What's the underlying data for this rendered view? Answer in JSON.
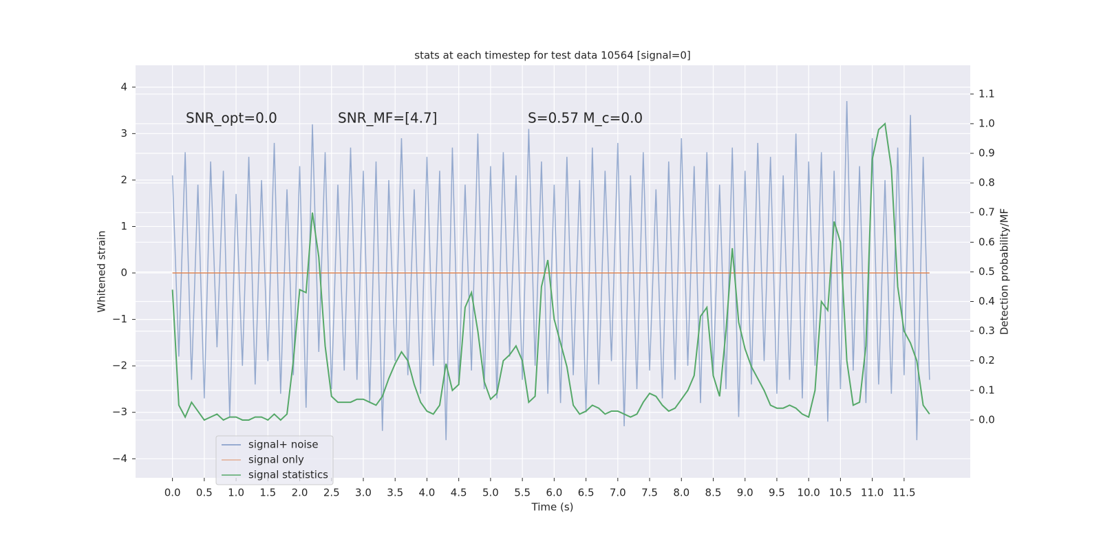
{
  "chart_data": {
    "type": "line",
    "title": "stats at each timestep for test data 10564 [signal=0]",
    "xlabel": "Time (s)",
    "ylabel": "Whitened strain",
    "y2label": "Detection probability/MF",
    "annotations": [
      "SNR_opt=0.0",
      "SNR_MF=[4.7]",
      "S=0.57   M_c=0.0"
    ],
    "grid": true,
    "legend": "lower left",
    "x": [
      0,
      0.1,
      0.2,
      0.3,
      0.4,
      0.5,
      0.6,
      0.7,
      0.8,
      0.9,
      1,
      1.1,
      1.2,
      1.3,
      1.4,
      1.5,
      1.6,
      1.7,
      1.8,
      1.9,
      2,
      2.1,
      2.2,
      2.3,
      2.4,
      2.5,
      2.6,
      2.7,
      2.8,
      2.9,
      3,
      3.1,
      3.2,
      3.3,
      3.4,
      3.5,
      3.6,
      3.7,
      3.8,
      3.9,
      4,
      4.1,
      4.2,
      4.3,
      4.4,
      4.5,
      4.6,
      4.7,
      4.8,
      4.9,
      5,
      5.1,
      5.2,
      5.3,
      5.4,
      5.5,
      5.6,
      5.7,
      5.8,
      5.9,
      6,
      6.1,
      6.2,
      6.3,
      6.4,
      6.5,
      6.6,
      6.7,
      6.8,
      6.9,
      7,
      7.1,
      7.2,
      7.3,
      7.4,
      7.5,
      7.6,
      7.7,
      7.8,
      7.9,
      8,
      8.1,
      8.2,
      8.3,
      8.4,
      8.5,
      8.6,
      8.7,
      8.8,
      8.9,
      9,
      9.1,
      9.2,
      9.3,
      9.4,
      9.5,
      9.6,
      9.7,
      9.8,
      9.9,
      10,
      10.1,
      10.2,
      10.3,
      10.4,
      10.5,
      10.6,
      10.7,
      10.8,
      10.9,
      11,
      11.1,
      11.2,
      11.3,
      11.4,
      11.5,
      11.6,
      11.7,
      11.8,
      11.9
    ],
    "series": [
      {
        "name": "signal+ noise",
        "color": "#4c72b0",
        "axis": "y",
        "values": [
          2.1,
          -1.8,
          2.6,
          -2.3,
          1.9,
          -2.7,
          2.4,
          -1.6,
          2.2,
          -3.1,
          1.7,
          -2.0,
          2.5,
          -2.4,
          2.0,
          -1.9,
          2.8,
          -2.6,
          1.8,
          -2.2,
          2.3,
          -2.9,
          3.2,
          -1.7,
          2.6,
          -2.5,
          1.9,
          -2.1,
          2.7,
          -2.3,
          2.2,
          -2.8,
          2.4,
          -3.4,
          2.0,
          -1.9,
          2.9,
          -2.2,
          1.8,
          -2.6,
          2.5,
          -2.0,
          2.2,
          -3.6,
          2.7,
          -2.4,
          1.9,
          -2.1,
          3.0,
          -2.5,
          2.3,
          -2.7,
          2.6,
          -1.8,
          2.1,
          -2.3,
          3.1,
          -2.0,
          2.4,
          -2.6,
          1.9,
          -2.8,
          2.5,
          -2.2,
          2.0,
          -3.0,
          2.7,
          -2.4,
          2.2,
          -1.9,
          2.8,
          -3.3,
          2.1,
          -2.5,
          2.6,
          -2.1,
          1.8,
          -2.7,
          2.4,
          -2.3,
          2.9,
          -2.0,
          2.3,
          -2.8,
          2.6,
          -2.2,
          1.9,
          -2.5,
          2.7,
          -3.1,
          2.2,
          -2.4,
          2.8,
          -1.9,
          2.5,
          -2.6,
          2.1,
          -2.3,
          3.0,
          -2.7,
          2.4,
          -2.0,
          2.6,
          -3.2,
          2.2,
          -2.5,
          3.7,
          -2.1,
          2.3,
          -2.8,
          2.9,
          -2.4,
          2.0,
          -2.6,
          2.7,
          -2.2,
          3.4,
          -3.6,
          2.5,
          -2.3
        ]
      },
      {
        "name": "signal only",
        "color": "#dd8452",
        "axis": "y",
        "values": [
          0,
          0,
          0,
          0,
          0,
          0,
          0,
          0,
          0,
          0,
          0,
          0,
          0,
          0,
          0,
          0,
          0,
          0,
          0,
          0,
          0,
          0,
          0,
          0,
          0,
          0,
          0,
          0,
          0,
          0,
          0,
          0,
          0,
          0,
          0,
          0,
          0,
          0,
          0,
          0,
          0,
          0,
          0,
          0,
          0,
          0,
          0,
          0,
          0,
          0,
          0,
          0,
          0,
          0,
          0,
          0,
          0,
          0,
          0,
          0,
          0,
          0,
          0,
          0,
          0,
          0,
          0,
          0,
          0,
          0,
          0,
          0,
          0,
          0,
          0,
          0,
          0,
          0,
          0,
          0,
          0,
          0,
          0,
          0,
          0,
          0,
          0,
          0,
          0,
          0,
          0,
          0,
          0,
          0,
          0,
          0,
          0,
          0,
          0,
          0,
          0,
          0,
          0,
          0,
          0,
          0,
          0,
          0,
          0,
          0,
          0,
          0,
          0,
          0,
          0,
          0,
          0,
          0,
          0,
          0
        ]
      },
      {
        "name": "signal statistics",
        "color": "#55a868",
        "axis": "y2",
        "values": [
          0.44,
          0.05,
          0.01,
          0.06,
          0.03,
          0.0,
          0.01,
          0.02,
          0.0,
          0.01,
          0.01,
          0.0,
          0.0,
          0.01,
          0.01,
          0.0,
          0.02,
          0.0,
          0.02,
          0.2,
          0.44,
          0.43,
          0.7,
          0.55,
          0.25,
          0.08,
          0.06,
          0.06,
          0.06,
          0.07,
          0.07,
          0.06,
          0.05,
          0.08,
          0.14,
          0.19,
          0.23,
          0.2,
          0.12,
          0.06,
          0.03,
          0.02,
          0.05,
          0.19,
          0.1,
          0.12,
          0.38,
          0.43,
          0.3,
          0.13,
          0.07,
          0.09,
          0.2,
          0.22,
          0.25,
          0.2,
          0.06,
          0.08,
          0.45,
          0.54,
          0.34,
          0.26,
          0.18,
          0.05,
          0.02,
          0.03,
          0.05,
          0.04,
          0.02,
          0.03,
          0.03,
          0.02,
          0.01,
          0.02,
          0.06,
          0.09,
          0.08,
          0.05,
          0.03,
          0.04,
          0.07,
          0.1,
          0.15,
          0.35,
          0.38,
          0.15,
          0.08,
          0.3,
          0.58,
          0.33,
          0.24,
          0.18,
          0.14,
          0.1,
          0.05,
          0.04,
          0.04,
          0.05,
          0.04,
          0.02,
          0.01,
          0.1,
          0.4,
          0.37,
          0.67,
          0.6,
          0.2,
          0.05,
          0.06,
          0.25,
          0.88,
          0.98,
          1.0,
          0.85,
          0.45,
          0.3,
          0.26,
          0.2,
          0.05,
          0.02
        ]
      }
    ],
    "xlim": [
      -0.58,
      12.54
    ],
    "xticks": [
      {
        "value": 0,
        "label": "0.0"
      },
      {
        "value": 0.5,
        "label": "0.5"
      },
      {
        "value": 1,
        "label": "1.0"
      },
      {
        "value": 1.5,
        "label": "1.5"
      },
      {
        "value": 2,
        "label": "2.0"
      },
      {
        "value": 2.5,
        "label": "2.5"
      },
      {
        "value": 3,
        "label": "3.0"
      },
      {
        "value": 3.5,
        "label": "3.5"
      },
      {
        "value": 4,
        "label": "4.0"
      },
      {
        "value": 4.5,
        "label": "4.5"
      },
      {
        "value": 5,
        "label": "5.0"
      },
      {
        "value": 5.5,
        "label": "5.5"
      },
      {
        "value": 6,
        "label": "6.0"
      },
      {
        "value": 6.5,
        "label": "6.5"
      },
      {
        "value": 7,
        "label": "7.0"
      },
      {
        "value": 7.5,
        "label": "7.5"
      },
      {
        "value": 8,
        "label": "8.0"
      },
      {
        "value": 8.5,
        "label": "8.5"
      },
      {
        "value": 9,
        "label": "9.0"
      },
      {
        "value": 9.5,
        "label": "9.5"
      },
      {
        "value": 10,
        "label": "10.0"
      },
      {
        "value": 10.5,
        "label": "10.5"
      },
      {
        "value": 11,
        "label": "11.0"
      },
      {
        "value": 11.5,
        "label": "11.5"
      }
    ],
    "ylim": [
      -4.41,
      4.47
    ],
    "yticks": [
      {
        "value": -4,
        "label": "−4"
      },
      {
        "value": -3,
        "label": "−3"
      },
      {
        "value": -2,
        "label": "−2"
      },
      {
        "value": -1,
        "label": "−1"
      },
      0,
      1,
      2,
      3,
      4
    ],
    "y2lim": [
      -0.195,
      1.197
    ],
    "y2ticks": [
      {
        "value": 0,
        "label": "0.0"
      },
      {
        "value": 0.1,
        "label": "0.1"
      },
      {
        "value": 0.2,
        "label": "0.2"
      },
      {
        "value": 0.3,
        "label": "0.3"
      },
      {
        "value": 0.4,
        "label": "0.4"
      },
      {
        "value": 0.5,
        "label": "0.5"
      },
      {
        "value": 0.6,
        "label": "0.6"
      },
      {
        "value": 0.7,
        "label": "0.7"
      },
      {
        "value": 0.8,
        "label": "0.8"
      },
      {
        "value": 0.9,
        "label": "0.9"
      },
      {
        "value": 1,
        "label": "1.0"
      },
      {
        "value": 1.1,
        "label": "1.1"
      }
    ]
  }
}
